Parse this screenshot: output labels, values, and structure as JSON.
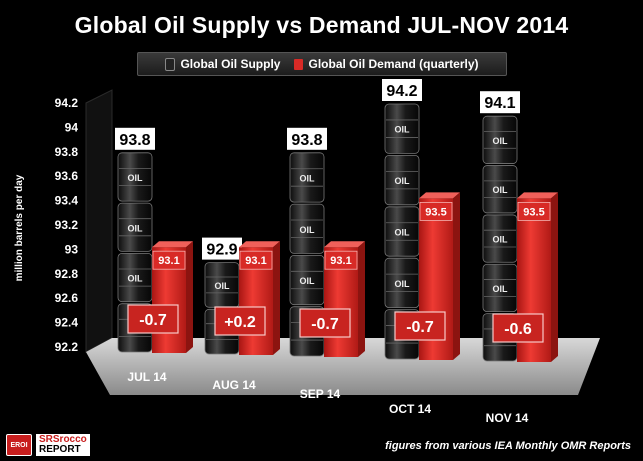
{
  "chart_data": {
    "type": "bar",
    "title": "Global Oil Supply vs Demand JUL-NOV 2014",
    "ylabel": "million barrels per day",
    "ylim": [
      92.2,
      94.2
    ],
    "yticks": [
      "94.2",
      "94",
      "93.8",
      "93.6",
      "93.4",
      "93.2",
      "93",
      "92.8",
      "92.6",
      "92.4",
      "92.2"
    ],
    "categories": [
      "JUL 14",
      "AUG 14",
      "SEP 14",
      "OCT 14",
      "NOV 14"
    ],
    "series": [
      {
        "name": "Global Oil Supply",
        "values": [
          93.8,
          92.9,
          93.8,
          94.2,
          94.1
        ],
        "labels": [
          "93.8",
          "92.9",
          "93.8",
          "94.2",
          "94.1"
        ]
      },
      {
        "name": "Global Oil Demand (quarterly)",
        "values": [
          93.1,
          93.1,
          93.1,
          93.5,
          93.5
        ],
        "labels": [
          "93.1",
          "93.1",
          "93.1",
          "93.5",
          "93.5"
        ]
      }
    ],
    "differences": [
      "-0.7",
      "+0.2",
      "-0.7",
      "-0.7",
      "-0.6"
    ],
    "barrel_label": "OIL",
    "legend_position": "top",
    "colors": {
      "supply": "#1a1a1a",
      "demand": "#d82a26",
      "floor": "#b8b8b8"
    }
  },
  "legend": {
    "supply": "Global Oil Supply",
    "demand": "Global Oil Demand (quarterly)"
  },
  "footer": "figures from various IEA Monthly OMR Reports",
  "logo": {
    "badge": "EROI",
    "line1": "SRSrocco",
    "line2": "REPORT"
  }
}
